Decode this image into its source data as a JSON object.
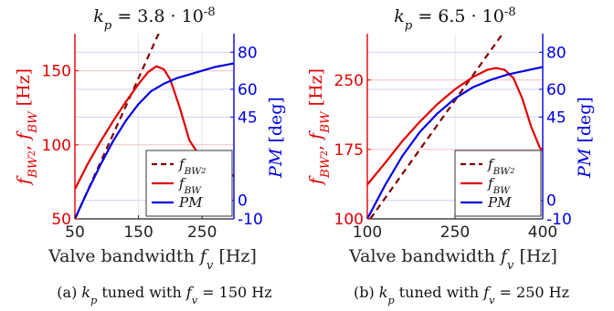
{
  "colors": {
    "left_axis": "#e00000",
    "right_axis": "#0000e0",
    "series_dashed": "#800000",
    "series_bw": "#e00000",
    "series_pm": "#0000e0",
    "grid": "#f0c0c0"
  },
  "chart_data": [
    {
      "type": "line",
      "title": "k_p = 3.8 · 10^-8",
      "xlabel": "Valve bandwidth f_v [Hz]",
      "ylabel": "f_BW2, f_BW [Hz]",
      "ylabel_right": "PM [deg]",
      "xlim": [
        50,
        300
      ],
      "ylim": [
        50,
        175
      ],
      "ylim_right": [
        -10,
        90
      ],
      "x_ticks": [
        "50",
        "150",
        "250"
      ],
      "x_tick_values": [
        50,
        150,
        250
      ],
      "y_ticks": [
        "50",
        "100",
        "150"
      ],
      "y_tick_values": [
        50,
        100,
        150
      ],
      "y_right_ticks": [
        "-10",
        "0",
        "45",
        "60",
        "80"
      ],
      "y_right_tick_values": [
        -10,
        0,
        45,
        60,
        80
      ],
      "grid": true,
      "legend_position": "bottom-right",
      "caption": "(a) k_p tuned with f_v = 150 Hz",
      "series": [
        {
          "name": "f_BW2",
          "axis": "left",
          "style": "dashed",
          "color": "#800000",
          "x": [
            50,
            190
          ],
          "y": [
            50,
            183
          ]
        },
        {
          "name": "f_BW",
          "axis": "left",
          "style": "solid",
          "color": "#e00000",
          "x": [
            50,
            70,
            90,
            110,
            130,
            150,
            165,
            178,
            190,
            200,
            215,
            230,
            250,
            270,
            290,
            300
          ],
          "y": [
            70,
            87,
            102,
            116,
            129,
            141,
            149,
            153,
            151,
            144,
            125,
            103,
            90,
            85,
            81,
            79
          ]
        },
        {
          "name": "PM",
          "axis": "right",
          "style": "solid",
          "color": "#0000e0",
          "x": [
            50,
            70,
            90,
            110,
            130,
            150,
            170,
            190,
            210,
            230,
            250,
            270,
            300
          ],
          "y": [
            -10,
            5,
            19,
            32,
            43,
            52,
            59,
            63,
            66,
            68,
            70,
            72,
            74
          ]
        }
      ]
    },
    {
      "type": "line",
      "title": "k_p = 6.5 · 10^-8",
      "xlabel": "Valve bandwidth f_v [Hz]",
      "ylabel": "f_BW2, f_BW [Hz]",
      "ylabel_right": "PM [deg]",
      "xlim": [
        100,
        400
      ],
      "ylim": [
        100,
        300
      ],
      "ylim_right": [
        -10,
        90
      ],
      "x_ticks": [
        "100",
        "250",
        "400"
      ],
      "x_tick_values": [
        100,
        250,
        400
      ],
      "y_ticks": [
        "100",
        "175",
        "250"
      ],
      "y_tick_values": [
        100,
        175,
        250
      ],
      "y_right_ticks": [
        "-10",
        "0",
        "45",
        "60",
        "80"
      ],
      "y_right_tick_values": [
        -10,
        0,
        45,
        60,
        80
      ],
      "grid": true,
      "legend_position": "bottom-right",
      "caption": "(b) k_p tuned with f_v = 250 Hz",
      "series": [
        {
          "name": "f_BW2",
          "axis": "left",
          "style": "dashed",
          "color": "#800000",
          "x": [
            105,
            345
          ],
          "y": [
            100,
            312
          ]
        },
        {
          "name": "f_BW",
          "axis": "left",
          "style": "solid",
          "color": "#e00000",
          "x": [
            100,
            130,
            160,
            190,
            220,
            250,
            280,
            305,
            320,
            335,
            350,
            365,
            380,
            395,
            400
          ],
          "y": [
            137,
            160,
            184,
            205,
            224,
            240,
            253,
            261,
            263,
            261,
            252,
            230,
            200,
            177,
            174
          ]
        },
        {
          "name": "PM",
          "axis": "right",
          "style": "solid",
          "color": "#0000e0",
          "x": [
            100,
            130,
            160,
            190,
            220,
            250,
            280,
            310,
            340,
            370,
            400
          ],
          "y": [
            -10,
            8,
            24,
            37,
            47,
            55,
            61,
            65,
            68,
            70,
            72
          ]
        }
      ]
    }
  ]
}
